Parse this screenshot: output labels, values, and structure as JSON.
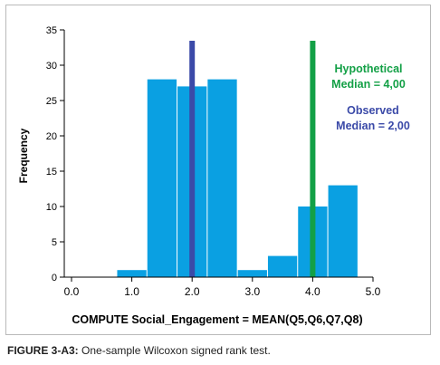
{
  "chart_data": {
    "type": "bar",
    "xlabel": "COMPUTE Social_Engagement = MEAN(Q5,Q6,Q7,Q8)",
    "ylabel": "Frequency",
    "xlim": [
      0,
      5
    ],
    "ylim": [
      0,
      35
    ],
    "xticks": [
      "0.0",
      "1.0",
      "2.0",
      "3.0",
      "4.0",
      "5.0"
    ],
    "yticks": [
      "0",
      "5",
      "10",
      "15",
      "20",
      "25",
      "30",
      "35"
    ],
    "bins": [
      {
        "x0": 0.75,
        "x1": 1.25,
        "value": 1
      },
      {
        "x0": 1.25,
        "x1": 1.75,
        "value": 28
      },
      {
        "x0": 1.75,
        "x1": 2.25,
        "value": 27
      },
      {
        "x0": 2.25,
        "x1": 2.75,
        "value": 28
      },
      {
        "x0": 2.75,
        "x1": 3.25,
        "value": 1
      },
      {
        "x0": 3.25,
        "x1": 3.75,
        "value": 3
      },
      {
        "x0": 3.75,
        "x1": 4.25,
        "value": 10
      },
      {
        "x0": 4.25,
        "x1": 4.75,
        "value": 13
      }
    ],
    "reference_lines": [
      {
        "name": "Observed",
        "x": 2.0,
        "label_line1": "Observed",
        "label_line2": "Median = 2,00",
        "color": "#3b4aa8"
      },
      {
        "name": "Hypothetical",
        "x": 4.0,
        "label_line1": "Hypothetical",
        "label_line2": "Median = 4,00",
        "color": "#13a046"
      }
    ],
    "bar_color": "#0aa0e2",
    "grid": false
  },
  "caption": {
    "label": "FIGURE 3-A3:",
    "text": " One-sample Wilcoxon signed rank test."
  }
}
